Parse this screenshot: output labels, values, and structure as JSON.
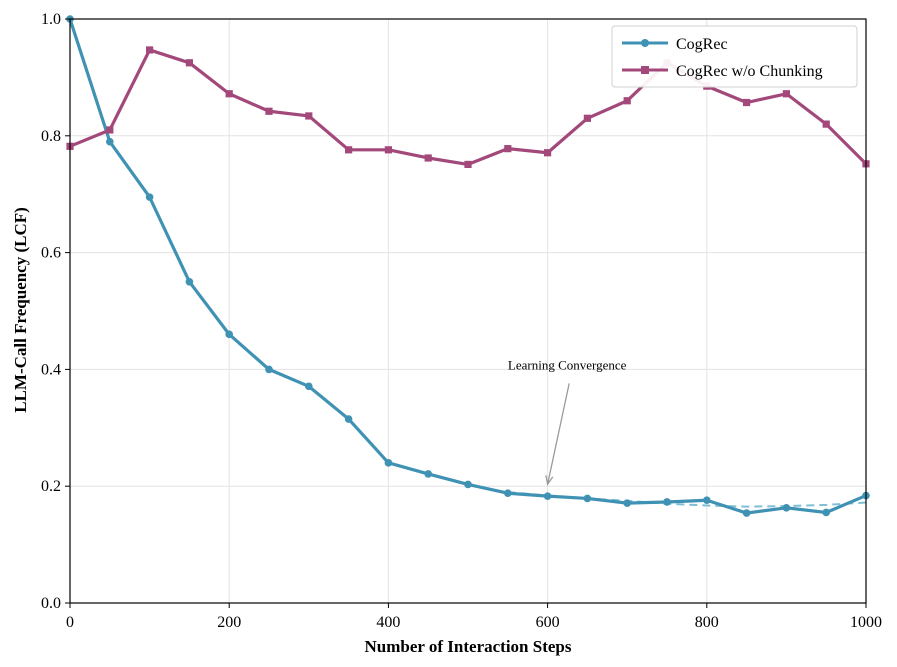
{
  "chart_data": {
    "type": "line",
    "title": "",
    "xlabel": "Number of Interaction Steps",
    "ylabel": "LLM-Call Frequency (LCF)",
    "xlim": [
      0,
      1000
    ],
    "ylim": [
      0,
      1.0
    ],
    "xticks": [
      0,
      200,
      400,
      600,
      800,
      1000
    ],
    "yticks": [
      0.0,
      0.2,
      0.4,
      0.6,
      0.8,
      1.0
    ],
    "ytick_labels": [
      "0.0",
      "0.2",
      "0.4",
      "0.6",
      "0.8",
      "1.0"
    ],
    "grid": true,
    "legend_position": "top-right",
    "x": [
      0,
      50,
      100,
      150,
      200,
      250,
      300,
      350,
      400,
      450,
      500,
      550,
      600,
      650,
      700,
      750,
      800,
      850,
      900,
      950,
      1000
    ],
    "series": [
      {
        "name": "CogRec",
        "color": "#3f92b3",
        "marker": "circle",
        "values": [
          1.0,
          0.79,
          0.695,
          0.55,
          0.46,
          0.4,
          0.371,
          0.315,
          0.24,
          0.221,
          0.203,
          0.188,
          0.183,
          0.179,
          0.171,
          0.173,
          0.176,
          0.154,
          0.163,
          0.155,
          0.184
        ]
      },
      {
        "name": "CogRec w/o Chunking",
        "color": "#a3487a",
        "marker": "square",
        "values": [
          0.782,
          0.81,
          0.947,
          0.925,
          0.872,
          0.842,
          0.834,
          0.776,
          0.776,
          0.762,
          0.751,
          0.778,
          0.771,
          0.83,
          0.86,
          0.925,
          0.885,
          0.857,
          0.872,
          0.82,
          0.752
        ]
      }
    ],
    "trend_line": {
      "color": "#7fbfd6",
      "x": [
        550,
        600,
        650,
        700,
        750,
        800,
        850,
        900,
        950,
        1000
      ],
      "values": [
        0.19,
        0.184,
        0.179,
        0.175,
        0.17,
        0.167,
        0.165,
        0.166,
        0.168,
        0.172
      ]
    },
    "annotation": {
      "text": "Learning Convergence",
      "point": [
        600,
        0.2
      ],
      "text_at": [
        700,
        0.4
      ]
    }
  }
}
